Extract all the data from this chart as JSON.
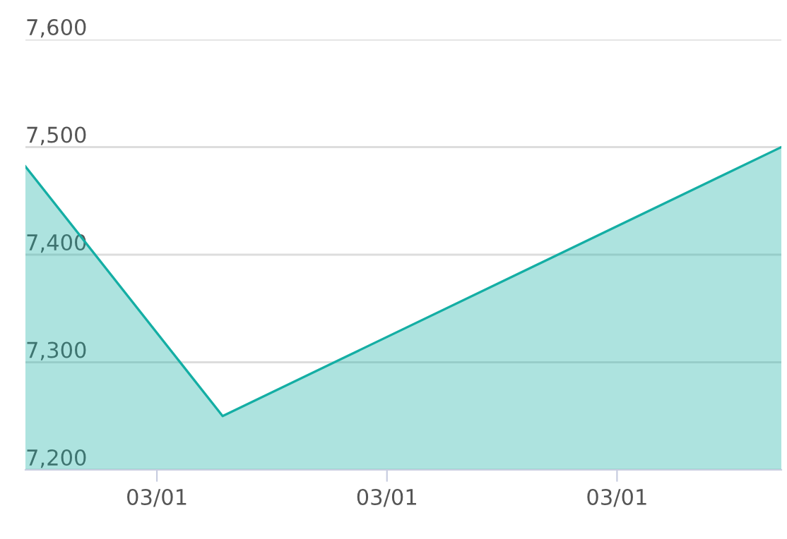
{
  "chart_data": {
    "type": "area",
    "categories": [
      null,
      null,
      null,
      null,
      "03/01",
      null,
      null,
      null,
      null,
      null,
      null,
      "03/01",
      null,
      null,
      null,
      null,
      null,
      null,
      "03/01",
      null,
      null,
      null,
      null,
      null
    ],
    "series": [
      {
        "color": "#14aea4",
        "values": [
          7482,
          null,
          null,
          null,
          null,
          null,
          7250,
          null,
          null,
          null,
          null,
          null,
          null,
          null,
          null,
          null,
          null,
          null,
          null,
          null,
          null,
          null,
          null,
          7500
        ]
      }
    ],
    "ylim": [
      7200,
      7600
    ],
    "yticks": [
      {
        "value": 7200,
        "label": "7,200"
      },
      {
        "value": 7300,
        "label": "7,300"
      },
      {
        "value": 7400,
        "label": "7,400"
      },
      {
        "value": 7500,
        "label": "7,500"
      },
      {
        "value": 7600,
        "label": "7,600"
      }
    ],
    "grid": "y"
  }
}
